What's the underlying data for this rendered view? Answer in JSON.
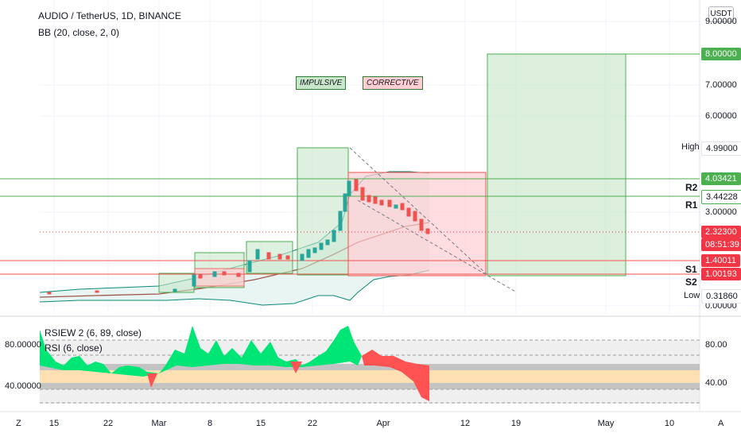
{
  "header": {
    "symbol_line": "AUDIO / TetherUS, 1D, BINANCE",
    "indicator_line": "BB (20, close, 2, 0)"
  },
  "currency_button": "USDT",
  "price_axis": {
    "ticks": [
      "9.00000",
      "7.00000",
      "6.00000",
      "3.00000",
      "0.00000"
    ]
  },
  "price_tags": {
    "target": "8.00000",
    "high_label": "High",
    "high_value": "4.99000",
    "r2_value": "4.03421",
    "r1_value": "3.44228",
    "last_price": "2.32300",
    "countdown": "08:51:39",
    "s1_value": "1.40011",
    "s2_value": "1.00193",
    "low_label": "Low",
    "low_value": "0.31860"
  },
  "levels": {
    "r2": "R2",
    "r1": "R1",
    "s1": "S1",
    "s2": "S2"
  },
  "annotations": {
    "impulsive": "IMPULSIVE",
    "corrective": "CORRECTIVE"
  },
  "rsi_pane": {
    "line1": "RSIEW 2 (6, 89, close)",
    "line2": "RSI (6, close)",
    "left_ticks": [
      "80.00000",
      "40.00000"
    ],
    "right_ticks": [
      "80.00",
      "40.00"
    ]
  },
  "time_axis": {
    "labels": [
      "15",
      "22",
      "Mar",
      "8",
      "15",
      "22",
      "Apr",
      "12",
      "19",
      "May",
      "10"
    ]
  },
  "bottom_corner": {
    "left": "Z",
    "right": "A"
  },
  "colors": {
    "up": "#26a69a",
    "down": "#ef5350",
    "target_green": "#4caf50",
    "last_price": "#f23645",
    "rsi_up": "#00e676",
    "rsi_down": "#ff5252"
  }
}
